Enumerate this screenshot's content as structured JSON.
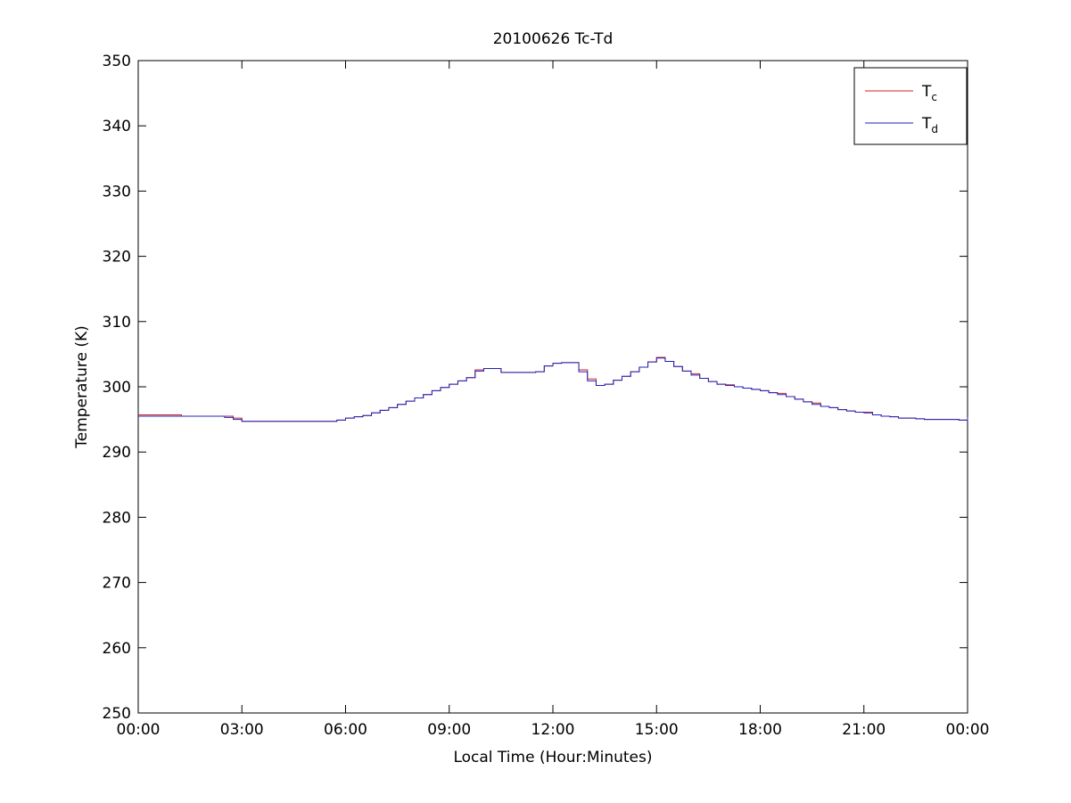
{
  "chart_data": {
    "type": "line",
    "title": "20100626 Tc-Td",
    "xlabel": "Local Time (Hour:Minutes)",
    "ylabel": "Temperature (K)",
    "xlim": [
      0,
      24
    ],
    "ylim": [
      250,
      350
    ],
    "grid": false,
    "line_style": "stairs",
    "legend_position": "top-right",
    "axis_color": "#000000",
    "background_color": "#ffffff",
    "xticks": {
      "positions": [
        0,
        3,
        6,
        9,
        12,
        15,
        18,
        21,
        24
      ],
      "labels": [
        "00:00",
        "03:00",
        "06:00",
        "09:00",
        "12:00",
        "15:00",
        "18:00",
        "21:00",
        "00:00"
      ]
    },
    "yticks": {
      "positions": [
        250,
        260,
        270,
        280,
        290,
        300,
        310,
        320,
        330,
        340,
        350
      ],
      "labels": [
        "250",
        "260",
        "270",
        "280",
        "290",
        "300",
        "310",
        "320",
        "330",
        "340",
        "350"
      ]
    },
    "x": [
      0,
      0.25,
      0.5,
      0.75,
      1,
      1.25,
      1.5,
      1.75,
      2,
      2.25,
      2.5,
      2.75,
      3,
      3.25,
      3.5,
      3.75,
      4,
      4.25,
      4.5,
      4.75,
      5,
      5.25,
      5.5,
      5.75,
      6,
      6.25,
      6.5,
      6.75,
      7,
      7.25,
      7.5,
      7.75,
      8,
      8.25,
      8.5,
      8.75,
      9,
      9.25,
      9.5,
      9.75,
      10,
      10.25,
      10.5,
      10.75,
      11,
      11.25,
      11.5,
      11.75,
      12,
      12.25,
      12.5,
      12.75,
      13,
      13.25,
      13.5,
      13.75,
      14,
      14.25,
      14.5,
      14.75,
      15,
      15.25,
      15.5,
      15.75,
      16,
      16.25,
      16.5,
      16.75,
      17,
      17.25,
      17.5,
      17.75,
      18,
      18.25,
      18.5,
      18.75,
      19,
      19.25,
      19.5,
      19.75,
      20,
      20.25,
      20.5,
      20.75,
      21,
      21.25,
      21.5,
      21.75,
      22,
      22.25,
      22.5,
      22.75,
      23,
      23.25,
      23.5,
      23.75,
      24
    ],
    "series": [
      {
        "name": "Tc",
        "legend_label": "T",
        "legend_sub": "c",
        "color": "#cc2222",
        "values": [
          295.7,
          295.7,
          295.7,
          295.7,
          295.7,
          295.5,
          295.5,
          295.5,
          295.5,
          295.5,
          295.5,
          295.2,
          294.7,
          294.7,
          294.7,
          294.7,
          294.7,
          294.7,
          294.7,
          294.7,
          294.7,
          294.7,
          294.7,
          294.9,
          295.2,
          295.4,
          295.6,
          296.0,
          296.4,
          296.8,
          297.3,
          297.8,
          298.3,
          298.8,
          299.4,
          299.9,
          300.4,
          300.9,
          301.4,
          302.6,
          302.8,
          302.8,
          302.2,
          302.2,
          302.2,
          302.2,
          302.3,
          303.2,
          303.6,
          303.7,
          303.7,
          302.6,
          301.2,
          300.2,
          300.4,
          301.0,
          301.6,
          302.3,
          303.0,
          303.8,
          304.5,
          303.9,
          303.1,
          302.4,
          302.0,
          301.3,
          300.8,
          300.4,
          300.3,
          300.0,
          299.8,
          299.6,
          299.4,
          299.1,
          299.0,
          298.5,
          298.1,
          297.7,
          297.5,
          297.0,
          296.8,
          296.5,
          296.3,
          296.1,
          296.1,
          295.7,
          295.5,
          295.4,
          295.2,
          295.2,
          295.1,
          295.0,
          295.0,
          295.0,
          295.0,
          294.9,
          295.3
        ]
      },
      {
        "name": "Td",
        "legend_label": "T",
        "legend_sub": "d",
        "color": "#2222bb",
        "values": [
          295.5,
          295.5,
          295.5,
          295.5,
          295.5,
          295.5,
          295.5,
          295.5,
          295.5,
          295.5,
          295.3,
          295.0,
          294.7,
          294.7,
          294.7,
          294.7,
          294.7,
          294.7,
          294.7,
          294.7,
          294.7,
          294.7,
          294.7,
          294.9,
          295.2,
          295.4,
          295.6,
          296.0,
          296.4,
          296.8,
          297.3,
          297.8,
          298.3,
          298.8,
          299.4,
          299.9,
          300.4,
          300.9,
          301.4,
          302.4,
          302.8,
          302.8,
          302.2,
          302.2,
          302.2,
          302.2,
          302.3,
          303.2,
          303.6,
          303.7,
          303.7,
          302.3,
          300.9,
          300.2,
          300.4,
          301.0,
          301.6,
          302.3,
          303.0,
          303.8,
          304.4,
          303.9,
          303.1,
          302.4,
          301.8,
          301.3,
          300.8,
          300.4,
          300.2,
          300.0,
          299.8,
          299.6,
          299.4,
          299.1,
          298.8,
          298.5,
          298.1,
          297.7,
          297.3,
          297.0,
          296.8,
          296.5,
          296.3,
          296.1,
          296.0,
          295.7,
          295.5,
          295.4,
          295.2,
          295.2,
          295.1,
          295.0,
          295.0,
          295.0,
          295.0,
          294.9,
          295.3
        ]
      }
    ]
  }
}
